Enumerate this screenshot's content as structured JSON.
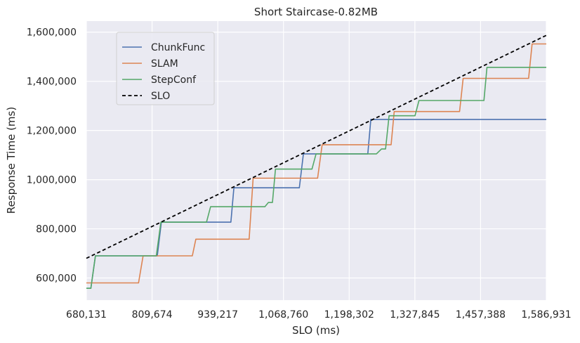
{
  "chart_data": {
    "type": "line",
    "title": "Short Staircase-0.82MB",
    "xlabel": "SLO (ms)",
    "ylabel": "Response Time (ms)",
    "xlim": [
      680131,
      1586931
    ],
    "ylim": [
      510000,
      1645000
    ],
    "xticks": [
      680131,
      809674,
      939217,
      1068760,
      1198302,
      1327845,
      1457388,
      1586931
    ],
    "xtick_labels": [
      "680,131",
      "809,674",
      "939,217",
      "1,068,760",
      "1,198,302",
      "1,327,845",
      "1,457,388",
      "1,586,931"
    ],
    "yticks": [
      600000,
      800000,
      1000000,
      1200000,
      1400000,
      1600000
    ],
    "ytick_labels": [
      "600,000",
      "800,000",
      "1,000,000",
      "1,200,000",
      "1,400,000",
      "1,600,000"
    ],
    "grid": true,
    "legend_position": "top-left",
    "series": [
      {
        "name": "ChunkFunc",
        "color": "#4c72b0",
        "dash": "solid",
        "points": [
          [
            680131,
            558000
          ],
          [
            689000,
            558000
          ],
          [
            698000,
            690000
          ],
          [
            820000,
            690000
          ],
          [
            828000,
            827000
          ],
          [
            965000,
            827000
          ],
          [
            971000,
            967000
          ],
          [
            1100000,
            967000
          ],
          [
            1108000,
            1105000
          ],
          [
            1235000,
            1105000
          ],
          [
            1241000,
            1245000
          ],
          [
            1586931,
            1245000
          ]
        ]
      },
      {
        "name": "SLAM",
        "color": "#dd8452",
        "dash": "solid",
        "points": [
          [
            680131,
            580000
          ],
          [
            783000,
            580000
          ],
          [
            792000,
            690000
          ],
          [
            889000,
            690000
          ],
          [
            896000,
            758000
          ],
          [
            1001000,
            758000
          ],
          [
            1009000,
            1006000
          ],
          [
            1136000,
            1006000
          ],
          [
            1145000,
            1142000
          ],
          [
            1281000,
            1142000
          ],
          [
            1287000,
            1277000
          ],
          [
            1416000,
            1277000
          ],
          [
            1423000,
            1412000
          ],
          [
            1552000,
            1412000
          ],
          [
            1559000,
            1552000
          ],
          [
            1586931,
            1552000
          ]
        ]
      },
      {
        "name": "StepConf",
        "color": "#55a868",
        "dash": "solid",
        "points": [
          [
            680131,
            558000
          ],
          [
            689000,
            558000
          ],
          [
            698000,
            690000
          ],
          [
            818000,
            690000
          ],
          [
            827000,
            827000
          ],
          [
            917000,
            827000
          ],
          [
            925000,
            890000
          ],
          [
            1032000,
            890000
          ],
          [
            1039000,
            907000
          ],
          [
            1047000,
            907000
          ],
          [
            1053000,
            1043000
          ],
          [
            1125000,
            1043000
          ],
          [
            1133000,
            1105000
          ],
          [
            1252000,
            1105000
          ],
          [
            1262000,
            1125000
          ],
          [
            1270000,
            1125000
          ],
          [
            1277000,
            1260000
          ],
          [
            1328000,
            1260000
          ],
          [
            1336000,
            1322000
          ],
          [
            1464000,
            1322000
          ],
          [
            1470000,
            1457000
          ],
          [
            1586931,
            1457000
          ]
        ]
      },
      {
        "name": "SLO",
        "color": "#000000",
        "dash": "dashed",
        "points": [
          [
            680131,
            680131
          ],
          [
            1586931,
            1586931
          ]
        ]
      }
    ]
  }
}
